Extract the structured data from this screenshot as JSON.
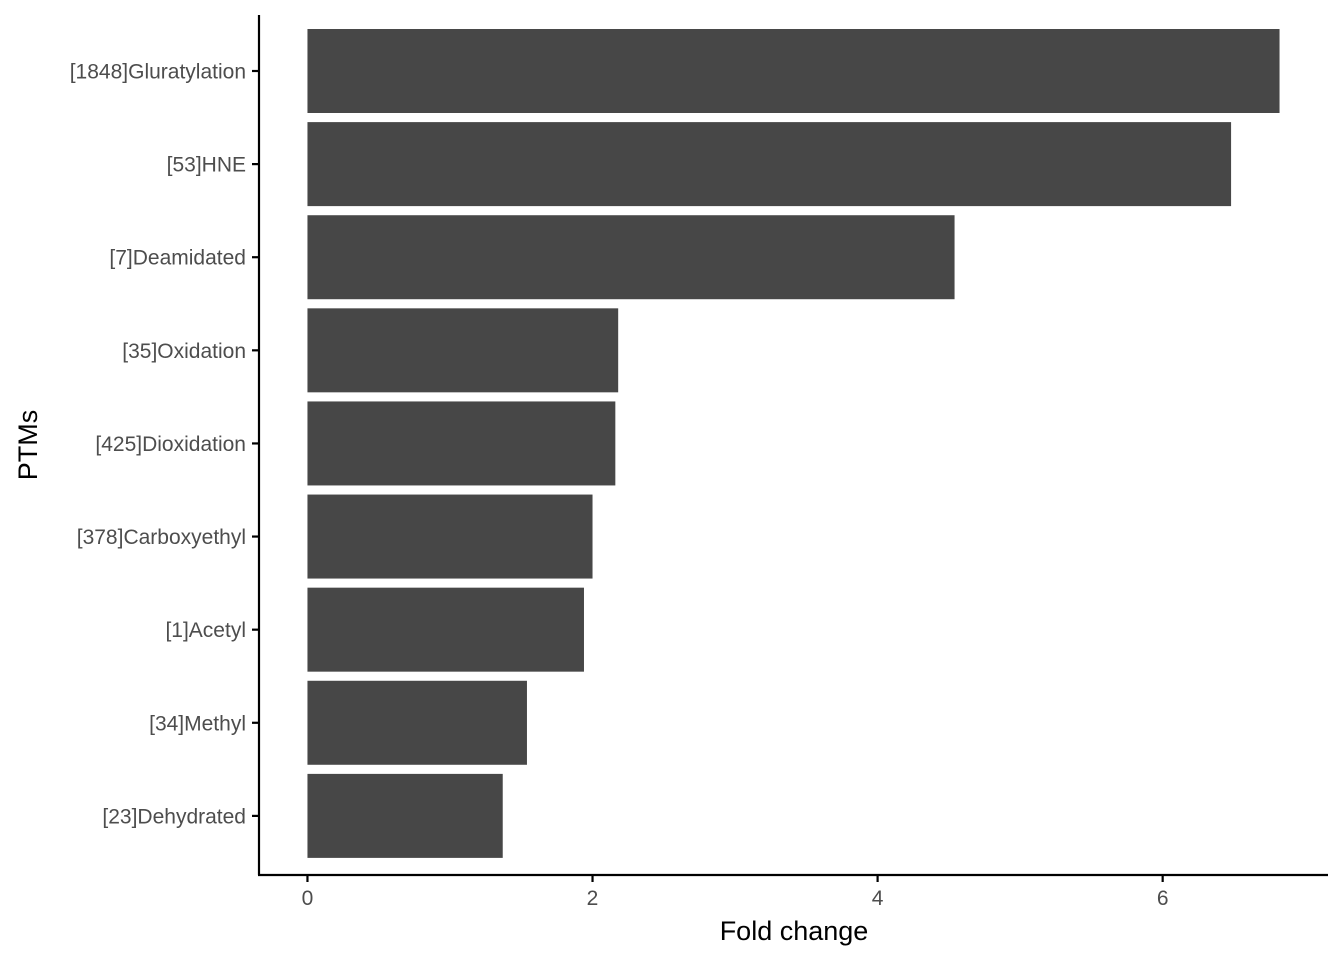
{
  "chart_data": {
    "type": "bar",
    "orientation": "horizontal",
    "categories": [
      "[1848]Gluratylation",
      "[53]HNE",
      "[7]Deamidated",
      "[35]Oxidation",
      "[425]Dioxidation",
      "[378]Carboxyethyl",
      "[1]Acetyl",
      "[34]Methyl",
      "[23]Dehydrated"
    ],
    "values": [
      6.82,
      6.48,
      4.54,
      2.18,
      2.16,
      2.0,
      1.94,
      1.54,
      1.37
    ],
    "xlabel": "Fold change",
    "ylabel": "PTMs",
    "xlim": [
      -0.34,
      7.16
    ],
    "xticks": [
      0,
      2,
      4,
      6
    ],
    "grid": false,
    "bar_color": "#474747",
    "axis_color": "#000000",
    "tick_label_color": "#4d4d4d"
  }
}
